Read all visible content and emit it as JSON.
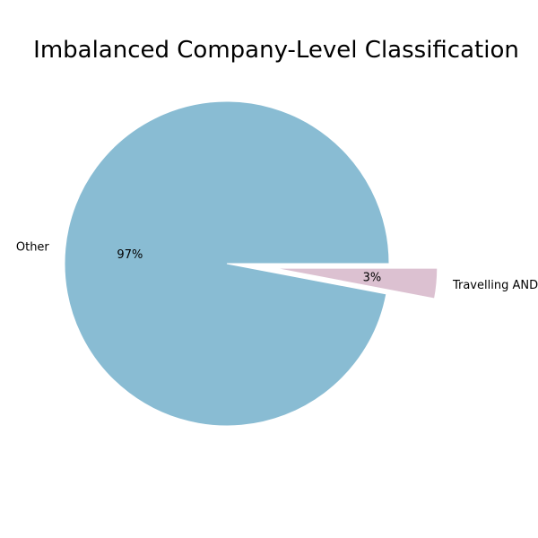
{
  "chart_data": {
    "type": "pie",
    "title": "Imbalanced Company-Level Classification",
    "slices": [
      {
        "label": "Other",
        "value": 97,
        "pct_label": "97%",
        "color": "#89bcd3",
        "exploded": false
      },
      {
        "label": "Travelling AND with West-jet",
        "value": 3,
        "pct_label": "3%",
        "color": "#dcc1d1",
        "exploded": true
      }
    ]
  }
}
